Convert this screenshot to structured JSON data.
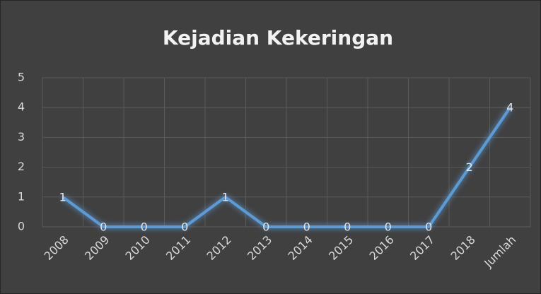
{
  "chart_data": {
    "type": "line",
    "title": "Kejadian Kekeringan",
    "categories": [
      "2008",
      "2009",
      "2010",
      "2011",
      "2012",
      "2013",
      "2014",
      "2015",
      "2016",
      "2017",
      "2018",
      "Jumlah"
    ],
    "values": [
      1,
      0,
      0,
      0,
      1,
      0,
      0,
      0,
      0,
      0,
      2,
      4
    ],
    "color": "#5b9bd5",
    "ylim": [
      0,
      5
    ],
    "yticks": [
      0,
      1,
      2,
      3,
      4,
      5
    ],
    "grid": true
  }
}
